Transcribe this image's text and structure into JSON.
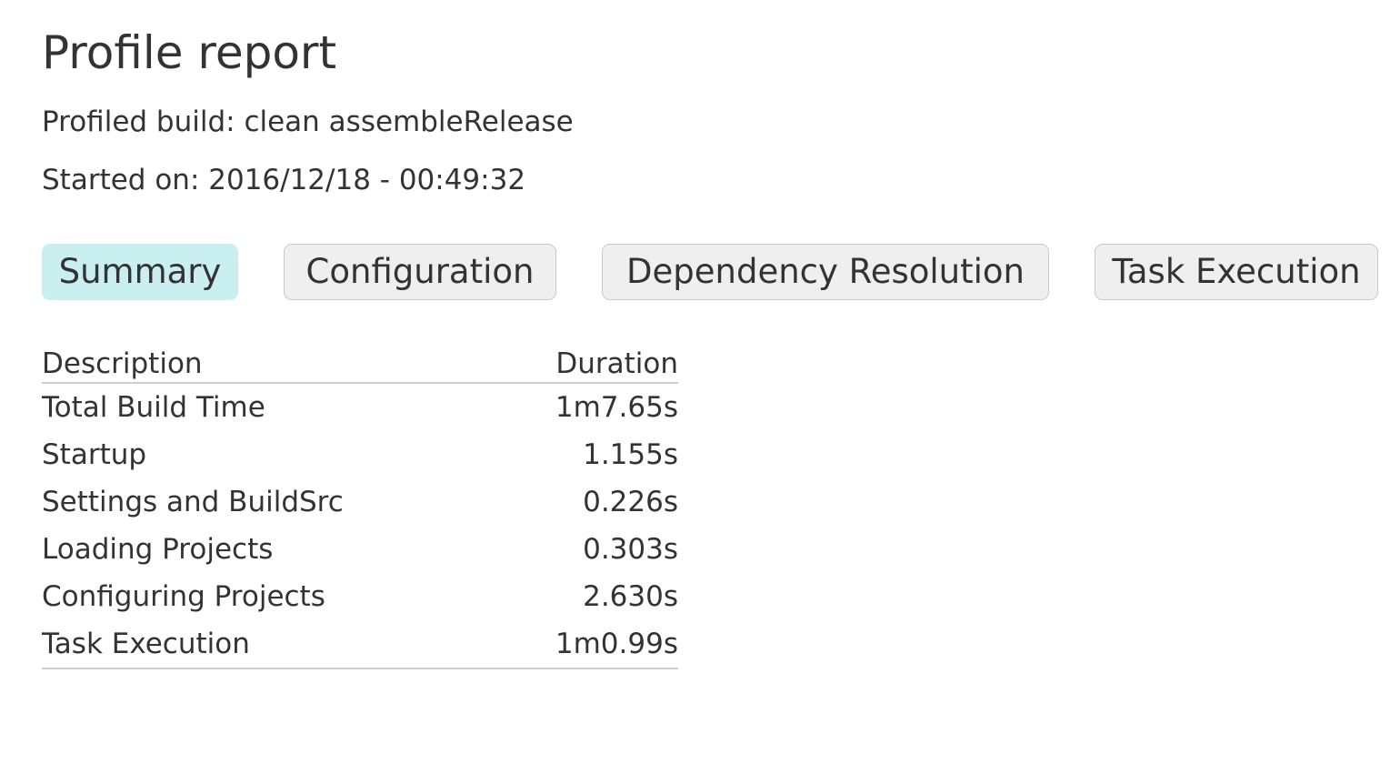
{
  "page": {
    "title": "Profile report",
    "profiled_build": "Profiled build: clean assembleRelease",
    "started_on": "Started on: 2016/12/18 - 00:49:32"
  },
  "tabs": [
    {
      "label": "Summary",
      "active": true
    },
    {
      "label": "Configuration",
      "active": false
    },
    {
      "label": "Dependency Resolution",
      "active": false
    },
    {
      "label": "Task Execution",
      "active": false
    }
  ],
  "summary_table": {
    "headers": {
      "description": "Description",
      "duration": "Duration"
    },
    "rows": [
      {
        "description": "Total Build Time",
        "duration": "1m7.65s"
      },
      {
        "description": "Startup",
        "duration": "1.155s"
      },
      {
        "description": "Settings and BuildSrc",
        "duration": "0.226s"
      },
      {
        "description": "Loading Projects",
        "duration": "0.303s"
      },
      {
        "description": "Configuring Projects",
        "duration": "2.630s"
      },
      {
        "description": "Task Execution",
        "duration": "1m0.99s"
      }
    ]
  },
  "colors": {
    "active_tab": "#c9eff1",
    "inactive_tab": "#efefef",
    "text": "#333333"
  }
}
